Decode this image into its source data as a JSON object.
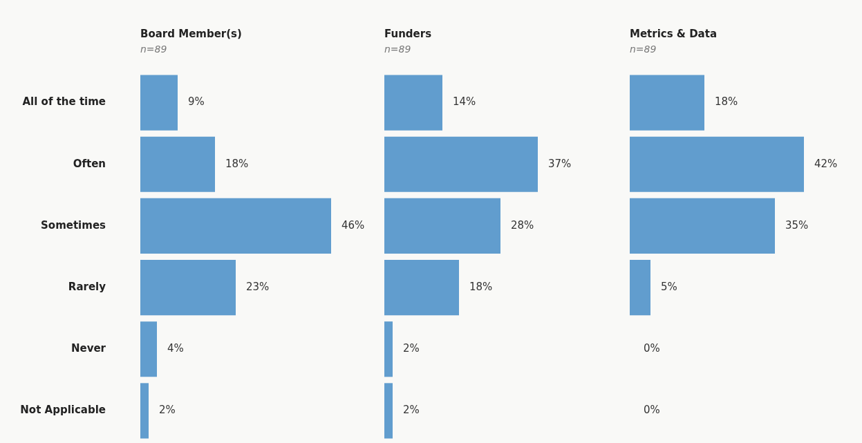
{
  "chart_data": [
    {
      "type": "bar",
      "orientation": "horizontal",
      "title": "Board Member(s)",
      "subtitle": "n=89",
      "categories": [
        "All of the time",
        "Often",
        "Sometimes",
        "Rarely",
        "Never",
        "Not Applicable"
      ],
      "values": [
        9,
        18,
        46,
        23,
        4,
        2
      ],
      "value_labels": [
        "9%",
        "18%",
        "46%",
        "23%",
        "4%",
        "2%"
      ],
      "color": "#619dce",
      "tick_labels": "y"
    },
    {
      "type": "bar",
      "orientation": "horizontal",
      "title": "Funders",
      "subtitle": "n=89",
      "categories": [
        null,
        null,
        null,
        null,
        null,
        null
      ],
      "values": [
        14,
        37,
        28,
        18,
        2,
        2
      ],
      "value_labels": [
        "14%",
        "37%",
        "28%",
        "18%",
        "2%",
        "2%"
      ],
      "color": "#619dce",
      "tick_labels": false
    },
    {
      "type": "bar",
      "orientation": "horizontal",
      "title": "Metrics & Data",
      "subtitle": "n=89",
      "categories": [
        null,
        null,
        null,
        null,
        null,
        null
      ],
      "values": [
        18,
        42,
        35,
        5,
        0,
        0
      ],
      "value_labels": [
        "18%",
        "42%",
        "35%",
        "5%",
        "0%",
        "0%"
      ],
      "color": "#619dce",
      "tick_labels": false
    }
  ]
}
